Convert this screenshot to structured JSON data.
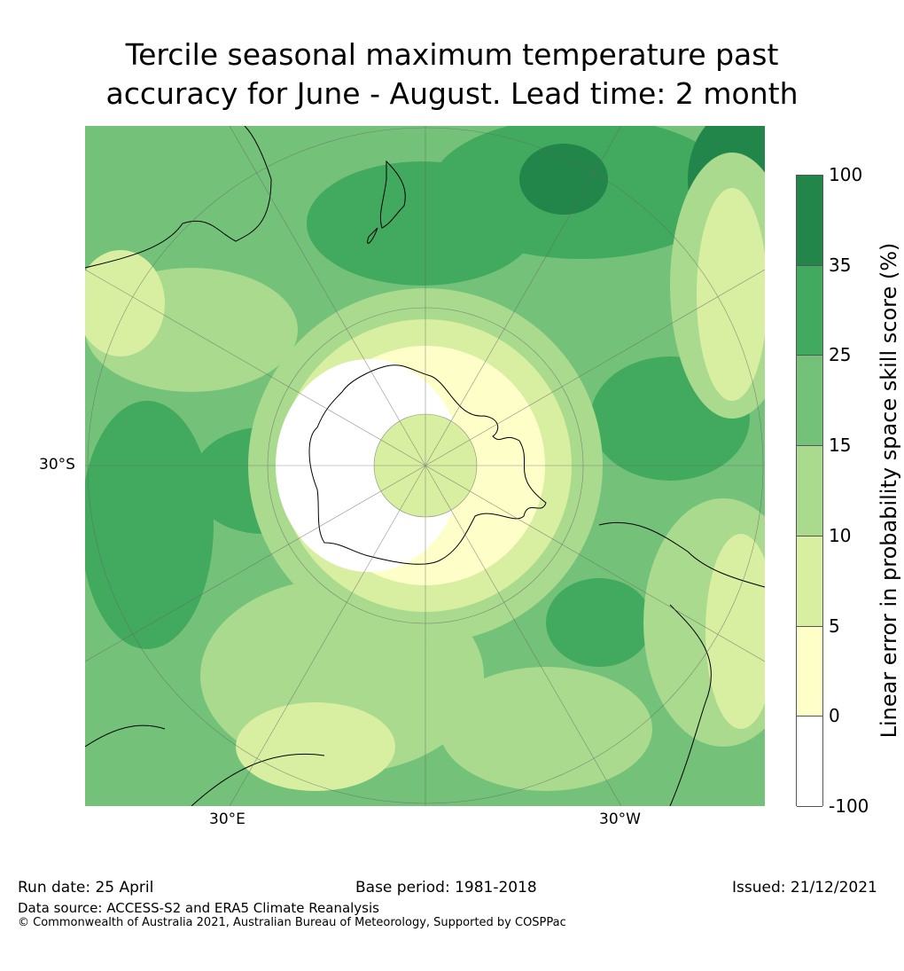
{
  "title": {
    "line1": "Tercile seasonal maximum temperature past",
    "line2": "accuracy for June - August. Lead time: 2 month"
  },
  "map": {
    "projection": "south polar stereographic",
    "lat_label": "30°S",
    "lon_labels": [
      "30°E",
      "30°W"
    ]
  },
  "colorbar": {
    "title": "Linear error in probability space skill score (%)",
    "ticks": [
      "100",
      "35",
      "25",
      "15",
      "10",
      "5",
      "0",
      "-100"
    ],
    "colors": [
      "#22864a",
      "#41aa5e",
      "#74c27a",
      "#a9da8e",
      "#d8eea0",
      "#fefec9",
      "#ffffff"
    ]
  },
  "footer": {
    "run_date": "Run date: 25 April",
    "base_period": "Base period: 1981-2018",
    "issued": "Issued: 21/12/2021",
    "data_source": "Data source: ACCESS-S2 and ERA5 Climate Reanalysis",
    "copyright": "© Commonwealth of Australia 2021, Australian Bureau of Meteorology, Supported by COSPPac"
  }
}
